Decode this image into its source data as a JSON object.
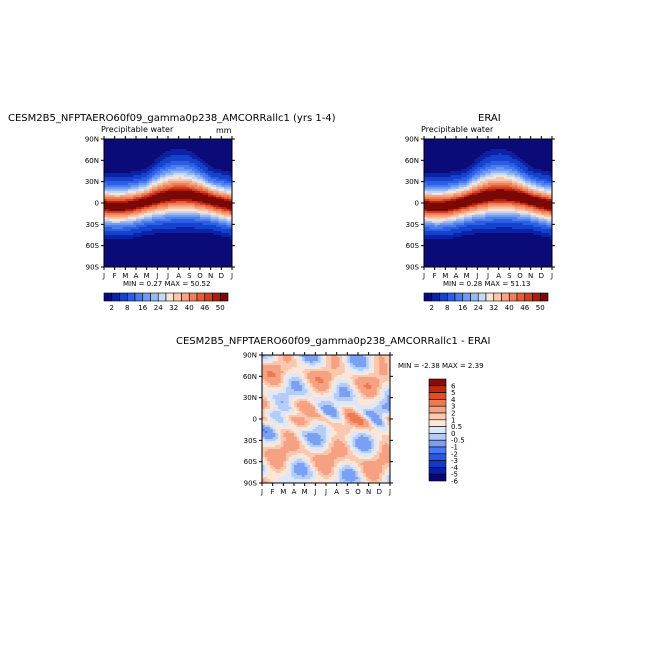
{
  "chart_data": [
    {
      "type": "heatmap",
      "title": "CESM2B5_NFPTAERO60f09_gamma0p238_AMCORRallc1 (yrs 1-4)",
      "subtitle": "Precipitable water",
      "units": "mm",
      "x_ticks": [
        "J",
        "F",
        "M",
        "A",
        "M",
        "J",
        "J",
        "A",
        "S",
        "O",
        "N",
        "D",
        "J"
      ],
      "y_ticks": [
        "90N",
        "60N",
        "30N",
        "0",
        "30S",
        "60S",
        "90S"
      ],
      "ylim": [
        -90,
        90
      ],
      "stats": "MIN =    0.27 MAX =   50.52",
      "min": 0.27,
      "max": 50.52,
      "colorbar_labels": [
        "2",
        "8",
        "16",
        "24",
        "32",
        "40",
        "46",
        "50"
      ]
    },
    {
      "type": "heatmap",
      "title": "ERAI",
      "subtitle": "Precipitable water",
      "x_ticks": [
        "J",
        "F",
        "M",
        "A",
        "M",
        "J",
        "J",
        "A",
        "S",
        "O",
        "N",
        "D",
        "J"
      ],
      "y_ticks": [
        "90N",
        "60N",
        "30N",
        "0",
        "30S",
        "60S",
        "90S"
      ],
      "ylim": [
        -90,
        90
      ],
      "stats": "MIN =    0.28 MAX =   51.13",
      "min": 0.28,
      "max": 51.13,
      "colorbar_labels": [
        "2",
        "8",
        "16",
        "24",
        "32",
        "40",
        "46",
        "50"
      ]
    },
    {
      "type": "heatmap",
      "title": "CESM2B5_NFPTAERO60f09_gamma0p238_AMCORRallc1 - ERAI",
      "x_ticks": [
        "J",
        "F",
        "M",
        "A",
        "M",
        "J",
        "J",
        "A",
        "S",
        "O",
        "N",
        "D",
        "J"
      ],
      "y_ticks": [
        "90N",
        "60N",
        "30N",
        "0",
        "30S",
        "60S",
        "90S"
      ],
      "ylim": [
        -90,
        90
      ],
      "stats": "MIN =   -2.38 MAX =    2.39",
      "min": -2.38,
      "max": 2.39,
      "colorbar_labels": [
        "6",
        "5",
        "4",
        "3",
        "2",
        "1",
        "0.5",
        "0",
        "-0.5",
        "-1",
        "-2",
        "-3",
        "-4",
        "-5",
        "-6"
      ]
    }
  ],
  "colors": {
    "pw": [
      "#0a0a78",
      "#0c22a6",
      "#1542cc",
      "#2a5ee6",
      "#4a7cf0",
      "#6f9af5",
      "#97b8f7",
      "#c4d8f8",
      "#fae4d4",
      "#f8c6ac",
      "#f5a484",
      "#f0805a",
      "#e85c34",
      "#d43c1a",
      "#b01e0a",
      "#7a0804"
    ],
    "diff": [
      "#06067a",
      "#0a1ea6",
      "#1238cc",
      "#2a56e6",
      "#4a78f0",
      "#7aa0f5",
      "#b4cdf8",
      "#dce8fa",
      "#fbe6d8",
      "#f9c8ae",
      "#f6a282",
      "#f07a50",
      "#e24e22",
      "#c22a0c",
      "#8a0a04"
    ]
  }
}
